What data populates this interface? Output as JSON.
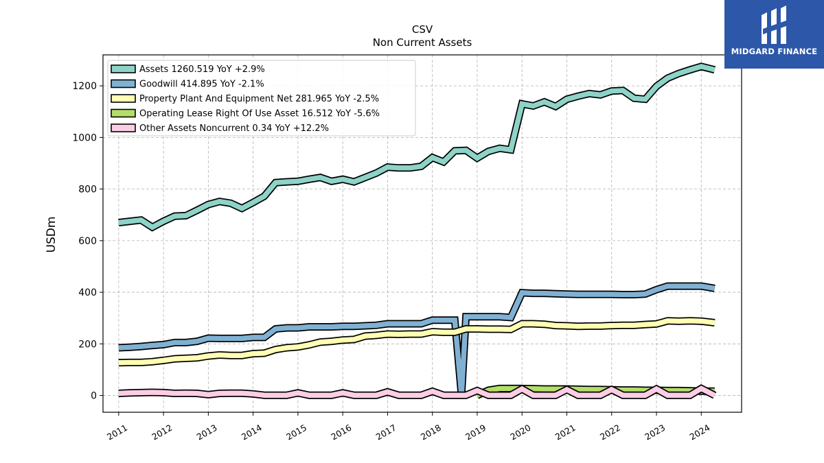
{
  "chart_data": {
    "type": "line",
    "title": "CSV",
    "subtitle": "Non Current  Assets",
    "ylabel": "USDm",
    "ylim": [
      -65,
      1320
    ],
    "xlim": [
      2010.65,
      2024.9
    ],
    "yticks": [
      0,
      200,
      400,
      600,
      800,
      1000,
      1200
    ],
    "xticks": [
      "2011",
      "2012",
      "2013",
      "2014",
      "2015",
      "2016",
      "2017",
      "2018",
      "2019",
      "2020",
      "2021",
      "2022",
      "2023",
      "2024"
    ],
    "grid": true,
    "legend_position": "top-left",
    "series": [
      {
        "name": "Assets  1260.519 YoY +2.9%",
        "color": "#8dd3c7",
        "points": [
          [
            2011.0,
            670
          ],
          [
            2011.25,
            675
          ],
          [
            2011.5,
            680
          ],
          [
            2011.75,
            652
          ],
          [
            2012.0,
            675
          ],
          [
            2012.25,
            695
          ],
          [
            2012.5,
            697
          ],
          [
            2012.75,
            718
          ],
          [
            2013.0,
            740
          ],
          [
            2013.25,
            752
          ],
          [
            2013.5,
            745
          ],
          [
            2013.75,
            725
          ],
          [
            2014.0,
            748
          ],
          [
            2014.25,
            772
          ],
          [
            2014.5,
            825
          ],
          [
            2014.75,
            828
          ],
          [
            2015.0,
            830
          ],
          [
            2015.25,
            838
          ],
          [
            2015.5,
            845
          ],
          [
            2015.75,
            830
          ],
          [
            2016.0,
            838
          ],
          [
            2016.25,
            828
          ],
          [
            2016.5,
            845
          ],
          [
            2016.75,
            862
          ],
          [
            2017.0,
            885
          ],
          [
            2017.25,
            882
          ],
          [
            2017.5,
            882
          ],
          [
            2017.75,
            888
          ],
          [
            2018.0,
            922
          ],
          [
            2018.25,
            905
          ],
          [
            2018.5,
            948
          ],
          [
            2018.75,
            950
          ],
          [
            2019.0,
            920
          ],
          [
            2019.25,
            946
          ],
          [
            2019.5,
            958
          ],
          [
            2019.75,
            952
          ],
          [
            2020.0,
            1130
          ],
          [
            2020.25,
            1122
          ],
          [
            2020.5,
            1138
          ],
          [
            2020.75,
            1120
          ],
          [
            2021.0,
            1148
          ],
          [
            2021.25,
            1160
          ],
          [
            2021.5,
            1170
          ],
          [
            2021.75,
            1165
          ],
          [
            2022.0,
            1180
          ],
          [
            2022.25,
            1182
          ],
          [
            2022.5,
            1152
          ],
          [
            2022.75,
            1148
          ],
          [
            2023.0,
            1198
          ],
          [
            2023.25,
            1230
          ],
          [
            2023.5,
            1248
          ],
          [
            2023.75,
            1262
          ],
          [
            2024.0,
            1275
          ],
          [
            2024.3,
            1262
          ]
        ]
      },
      {
        "name": "Goodwill  414.895 YoY -2.1%",
        "color": "#80b1d3",
        "points": [
          [
            2011.0,
            185
          ],
          [
            2011.25,
            187
          ],
          [
            2011.5,
            190
          ],
          [
            2011.75,
            194
          ],
          [
            2012.0,
            197
          ],
          [
            2012.25,
            205
          ],
          [
            2012.5,
            205
          ],
          [
            2012.75,
            210
          ],
          [
            2013.0,
            222
          ],
          [
            2013.25,
            221
          ],
          [
            2013.5,
            221
          ],
          [
            2013.75,
            221
          ],
          [
            2014.0,
            225
          ],
          [
            2014.25,
            225
          ],
          [
            2014.5,
            258
          ],
          [
            2014.75,
            262
          ],
          [
            2015.0,
            262
          ],
          [
            2015.25,
            266
          ],
          [
            2015.5,
            266
          ],
          [
            2015.75,
            266
          ],
          [
            2016.0,
            268
          ],
          [
            2016.25,
            268
          ],
          [
            2016.5,
            270
          ],
          [
            2016.75,
            272
          ],
          [
            2017.0,
            278
          ],
          [
            2017.25,
            278
          ],
          [
            2017.5,
            278
          ],
          [
            2017.75,
            278
          ],
          [
            2018.0,
            292
          ],
          [
            2018.25,
            292
          ],
          [
            2018.5,
            292
          ],
          [
            2018.65,
            0
          ],
          [
            2018.75,
            305
          ],
          [
            2019.0,
            305
          ],
          [
            2019.25,
            305
          ],
          [
            2019.5,
            305
          ],
          [
            2019.75,
            302
          ],
          [
            2020.0,
            398
          ],
          [
            2020.25,
            396
          ],
          [
            2020.5,
            396
          ],
          [
            2020.75,
            394
          ],
          [
            2021.0,
            393
          ],
          [
            2021.25,
            392
          ],
          [
            2021.5,
            392
          ],
          [
            2021.75,
            392
          ],
          [
            2022.0,
            392
          ],
          [
            2022.25,
            391
          ],
          [
            2022.5,
            391
          ],
          [
            2022.75,
            393
          ],
          [
            2023.0,
            410
          ],
          [
            2023.25,
            424
          ],
          [
            2023.5,
            424
          ],
          [
            2023.75,
            424
          ],
          [
            2024.0,
            424
          ],
          [
            2024.3,
            415
          ]
        ]
      },
      {
        "name": "Property Plant And Equipment Net  281.965 YoY -2.5%",
        "color": "#ffffb3",
        "points": [
          [
            2011.0,
            127
          ],
          [
            2011.25,
            128
          ],
          [
            2011.5,
            128
          ],
          [
            2011.75,
            131
          ],
          [
            2012.0,
            136
          ],
          [
            2012.25,
            142
          ],
          [
            2012.5,
            144
          ],
          [
            2012.75,
            146
          ],
          [
            2013.0,
            153
          ],
          [
            2013.25,
            157
          ],
          [
            2013.5,
            155
          ],
          [
            2013.75,
            155
          ],
          [
            2014.0,
            162
          ],
          [
            2014.25,
            164
          ],
          [
            2014.5,
            178
          ],
          [
            2014.75,
            185
          ],
          [
            2015.0,
            188
          ],
          [
            2015.25,
            196
          ],
          [
            2015.5,
            207
          ],
          [
            2015.75,
            210
          ],
          [
            2016.0,
            215
          ],
          [
            2016.25,
            217
          ],
          [
            2016.5,
            230
          ],
          [
            2016.75,
            233
          ],
          [
            2017.0,
            238
          ],
          [
            2017.25,
            237
          ],
          [
            2017.5,
            238
          ],
          [
            2017.75,
            238
          ],
          [
            2018.0,
            247
          ],
          [
            2018.25,
            245
          ],
          [
            2018.5,
            245
          ],
          [
            2018.75,
            258
          ],
          [
            2019.0,
            258
          ],
          [
            2019.25,
            257
          ],
          [
            2019.5,
            257
          ],
          [
            2019.75,
            256
          ],
          [
            2020.0,
            278
          ],
          [
            2020.25,
            278
          ],
          [
            2020.5,
            276
          ],
          [
            2020.75,
            271
          ],
          [
            2021.0,
            270
          ],
          [
            2021.25,
            268
          ],
          [
            2021.5,
            269
          ],
          [
            2021.75,
            269
          ],
          [
            2022.0,
            271
          ],
          [
            2022.25,
            272
          ],
          [
            2022.5,
            272
          ],
          [
            2022.75,
            275
          ],
          [
            2023.0,
            277
          ],
          [
            2023.25,
            289
          ],
          [
            2023.5,
            288
          ],
          [
            2023.75,
            289
          ],
          [
            2024.0,
            288
          ],
          [
            2024.3,
            282
          ]
        ]
      },
      {
        "name": "Operating Lease Right Of Use Asset  16.512 YoY -5.6%",
        "color": "#b3de69",
        "points": [
          [
            2019.0,
            0
          ],
          [
            2019.25,
            20
          ],
          [
            2019.5,
            27
          ],
          [
            2019.75,
            27
          ],
          [
            2020.0,
            27
          ],
          [
            2020.25,
            26
          ],
          [
            2020.5,
            25
          ],
          [
            2020.75,
            25
          ],
          [
            2021.0,
            25
          ],
          [
            2021.25,
            24
          ],
          [
            2021.5,
            23
          ],
          [
            2021.75,
            23
          ],
          [
            2022.0,
            22
          ],
          [
            2022.25,
            21
          ],
          [
            2022.5,
            21
          ],
          [
            2022.75,
            20
          ],
          [
            2023.0,
            20
          ],
          [
            2023.25,
            19
          ],
          [
            2023.5,
            19
          ],
          [
            2023.75,
            18
          ],
          [
            2024.0,
            17
          ],
          [
            2024.3,
            16.5
          ]
        ]
      },
      {
        "name": "Other Assets Noncurrent  0.34 YoY +12.2%",
        "color": "#fccde5",
        "points": [
          [
            2011.0,
            8
          ],
          [
            2011.25,
            10
          ],
          [
            2011.5,
            11
          ],
          [
            2011.75,
            12
          ],
          [
            2012.0,
            11
          ],
          [
            2012.25,
            8
          ],
          [
            2012.5,
            9
          ],
          [
            2012.75,
            8
          ],
          [
            2013.0,
            3
          ],
          [
            2013.25,
            8
          ],
          [
            2013.5,
            9
          ],
          [
            2013.75,
            9
          ],
          [
            2014.0,
            6
          ],
          [
            2014.25,
            1
          ],
          [
            2014.5,
            1
          ],
          [
            2014.75,
            1
          ],
          [
            2015.0,
            10
          ],
          [
            2015.25,
            1
          ],
          [
            2015.5,
            1
          ],
          [
            2015.75,
            1
          ],
          [
            2016.0,
            10
          ],
          [
            2016.25,
            1
          ],
          [
            2016.5,
            1
          ],
          [
            2016.75,
            1
          ],
          [
            2017.0,
            14
          ],
          [
            2017.25,
            1
          ],
          [
            2017.5,
            1
          ],
          [
            2017.75,
            1
          ],
          [
            2018.0,
            16
          ],
          [
            2018.25,
            1
          ],
          [
            2018.5,
            1
          ],
          [
            2018.75,
            1
          ],
          [
            2019.0,
            19
          ],
          [
            2019.25,
            1
          ],
          [
            2019.5,
            1
          ],
          [
            2019.75,
            1
          ],
          [
            2020.0,
            25
          ],
          [
            2020.25,
            1
          ],
          [
            2020.5,
            1
          ],
          [
            2020.75,
            1
          ],
          [
            2021.0,
            23
          ],
          [
            2021.25,
            1
          ],
          [
            2021.5,
            1
          ],
          [
            2021.75,
            1
          ],
          [
            2022.0,
            23
          ],
          [
            2022.25,
            1
          ],
          [
            2022.5,
            1
          ],
          [
            2022.75,
            1
          ],
          [
            2023.0,
            25
          ],
          [
            2023.25,
            1
          ],
          [
            2023.5,
            1
          ],
          [
            2023.75,
            1
          ],
          [
            2024.0,
            27
          ],
          [
            2024.3,
            0.34
          ]
        ]
      }
    ]
  },
  "logo": {
    "text": "MIDGARD FINANCE",
    "color": "#2d57a8"
  }
}
